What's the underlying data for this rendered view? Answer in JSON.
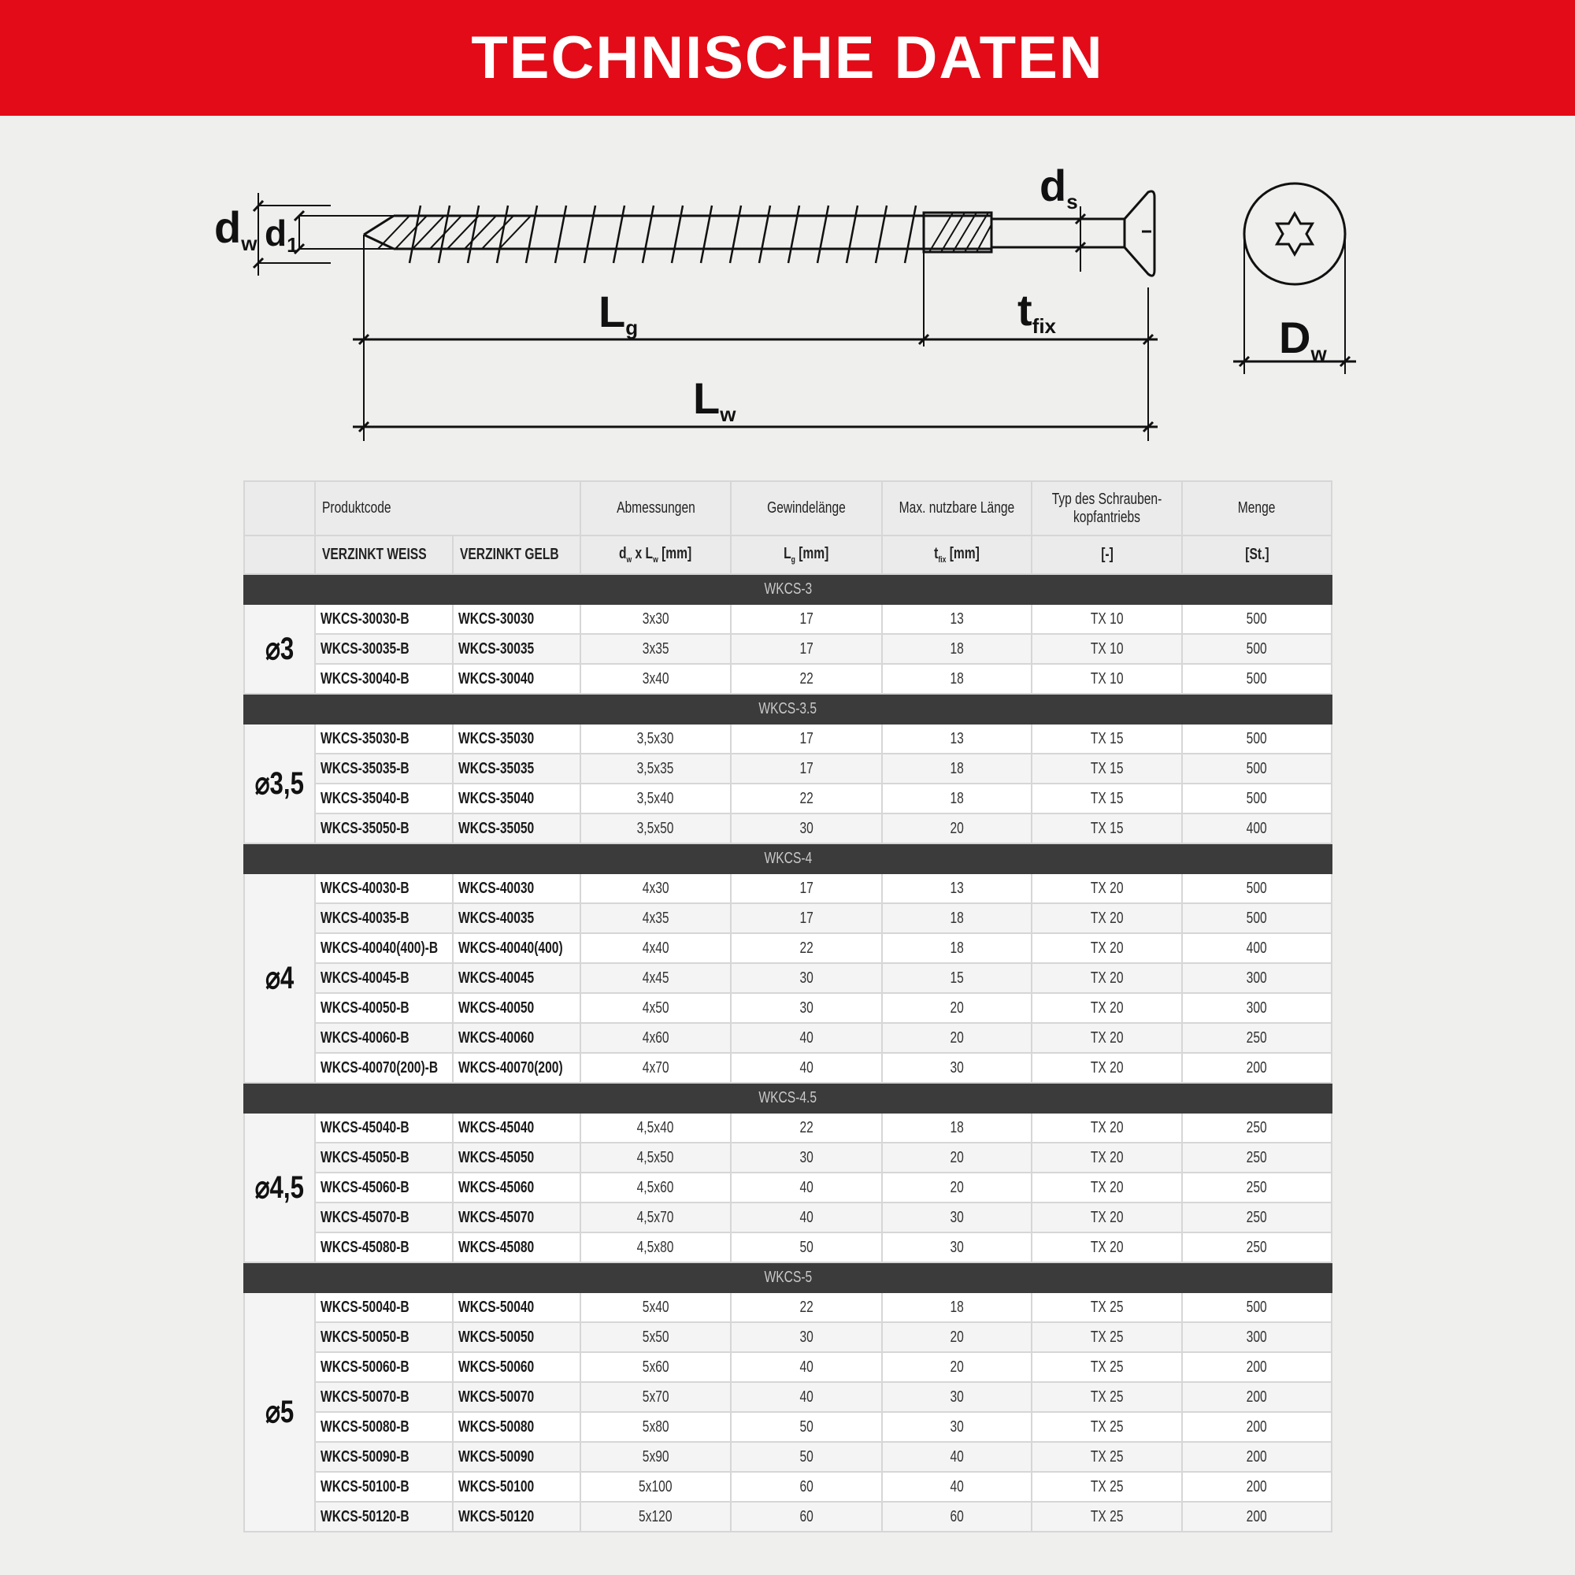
{
  "title": "TECHNISCHE DATEN",
  "diagram": {
    "labels": {
      "dw": {
        "main": "d",
        "sub": "w"
      },
      "d1": {
        "main": "d",
        "sub": "1"
      },
      "ds": {
        "main": "d",
        "sub": "s"
      },
      "Lg": {
        "main": "L",
        "sub": "g"
      },
      "tfix": {
        "main": "t",
        "sub": "fix"
      },
      "Lw": {
        "main": "L",
        "sub": "w"
      },
      "Dw": {
        "main": "D",
        "sub": "w"
      }
    },
    "drive_icon": "torx-star-icon"
  },
  "table": {
    "header": {
      "produktcode": "Produktcode",
      "abmessungen": "Abmessungen",
      "gewindelaenge": "Gewindelänge",
      "max_laenge": "Max. nutzbare Länge",
      "typ_line1": "Typ des Schrauben-",
      "typ_line2": "kopfantriebs",
      "menge": "Menge"
    },
    "subheader": {
      "weiss": "VERZINKT WEISS",
      "gelb": "VERZINKT GELB",
      "dims": {
        "a": "d",
        "a_sub": "w",
        "b": " x L",
        "b_sub": "w",
        "c": " [mm]"
      },
      "lg": {
        "a": "L",
        "a_sub": "g",
        "c": " [mm]"
      },
      "tfix": {
        "a": "t",
        "a_sub": "fix",
        "c": " [mm]"
      },
      "typ": "[-]",
      "menge": "[St.]"
    },
    "groups": [
      {
        "name": "WKCS-3",
        "diameter": "⌀3",
        "rows": [
          [
            "WKCS-30030-B",
            "WKCS-30030",
            "3x30",
            "17",
            "13",
            "TX 10",
            "500"
          ],
          [
            "WKCS-30035-B",
            "WKCS-30035",
            "3x35",
            "17",
            "18",
            "TX 10",
            "500"
          ],
          [
            "WKCS-30040-B",
            "WKCS-30040",
            "3x40",
            "22",
            "18",
            "TX 10",
            "500"
          ]
        ]
      },
      {
        "name": "WKCS-3.5",
        "diameter": "⌀3,5",
        "rows": [
          [
            "WKCS-35030-B",
            "WKCS-35030",
            "3,5x30",
            "17",
            "13",
            "TX 15",
            "500"
          ],
          [
            "WKCS-35035-B",
            "WKCS-35035",
            "3,5x35",
            "17",
            "18",
            "TX 15",
            "500"
          ],
          [
            "WKCS-35040-B",
            "WKCS-35040",
            "3,5x40",
            "22",
            "18",
            "TX 15",
            "500"
          ],
          [
            "WKCS-35050-B",
            "WKCS-35050",
            "3,5x50",
            "30",
            "20",
            "TX 15",
            "400"
          ]
        ]
      },
      {
        "name": "WKCS-4",
        "diameter": "⌀4",
        "rows": [
          [
            "WKCS-40030-B",
            "WKCS-40030",
            "4x30",
            "17",
            "13",
            "TX 20",
            "500"
          ],
          [
            "WKCS-40035-B",
            "WKCS-40035",
            "4x35",
            "17",
            "18",
            "TX 20",
            "500"
          ],
          [
            "WKCS-40040(400)-B",
            "WKCS-40040(400)",
            "4x40",
            "22",
            "18",
            "TX 20",
            "400"
          ],
          [
            "WKCS-40045-B",
            "WKCS-40045",
            "4x45",
            "30",
            "15",
            "TX 20",
            "300"
          ],
          [
            "WKCS-40050-B",
            "WKCS-40050",
            "4x50",
            "30",
            "20",
            "TX 20",
            "300"
          ],
          [
            "WKCS-40060-B",
            "WKCS-40060",
            "4x60",
            "40",
            "20",
            "TX 20",
            "250"
          ],
          [
            "WKCS-40070(200)-B",
            "WKCS-40070(200)",
            "4x70",
            "40",
            "30",
            "TX 20",
            "200"
          ]
        ]
      },
      {
        "name": "WKCS-4.5",
        "diameter": "⌀4,5",
        "rows": [
          [
            "WKCS-45040-B",
            "WKCS-45040",
            "4,5x40",
            "22",
            "18",
            "TX 20",
            "250"
          ],
          [
            "WKCS-45050-B",
            "WKCS-45050",
            "4,5x50",
            "30",
            "20",
            "TX 20",
            "250"
          ],
          [
            "WKCS-45060-B",
            "WKCS-45060",
            "4,5x60",
            "40",
            "20",
            "TX 20",
            "250"
          ],
          [
            "WKCS-45070-B",
            "WKCS-45070",
            "4,5x70",
            "40",
            "30",
            "TX 20",
            "250"
          ],
          [
            "WKCS-45080-B",
            "WKCS-45080",
            "4,5x80",
            "50",
            "30",
            "TX 20",
            "250"
          ]
        ]
      },
      {
        "name": "WKCS-5",
        "diameter": "⌀5",
        "rows": [
          [
            "WKCS-50040-B",
            "WKCS-50040",
            "5x40",
            "22",
            "18",
            "TX 25",
            "500"
          ],
          [
            "WKCS-50050-B",
            "WKCS-50050",
            "5x50",
            "30",
            "20",
            "TX 25",
            "300"
          ],
          [
            "WKCS-50060-B",
            "WKCS-50060",
            "5x60",
            "40",
            "20",
            "TX 25",
            "200"
          ],
          [
            "WKCS-50070-B",
            "WKCS-50070",
            "5x70",
            "40",
            "30",
            "TX 25",
            "200"
          ],
          [
            "WKCS-50080-B",
            "WKCS-50080",
            "5x80",
            "50",
            "30",
            "TX 25",
            "200"
          ],
          [
            "WKCS-50090-B",
            "WKCS-50090",
            "5x90",
            "50",
            "40",
            "TX 25",
            "200"
          ],
          [
            "WKCS-50100-B",
            "WKCS-50100",
            "5x100",
            "60",
            "40",
            "TX 25",
            "200"
          ],
          [
            "WKCS-50120-B",
            "WKCS-50120",
            "5x120",
            "60",
            "60",
            "TX 25",
            "200"
          ]
        ]
      }
    ]
  },
  "colors": {
    "banner": "#e30b17",
    "band": "#3b3b3b",
    "header_bg": "#ebebeb"
  }
}
